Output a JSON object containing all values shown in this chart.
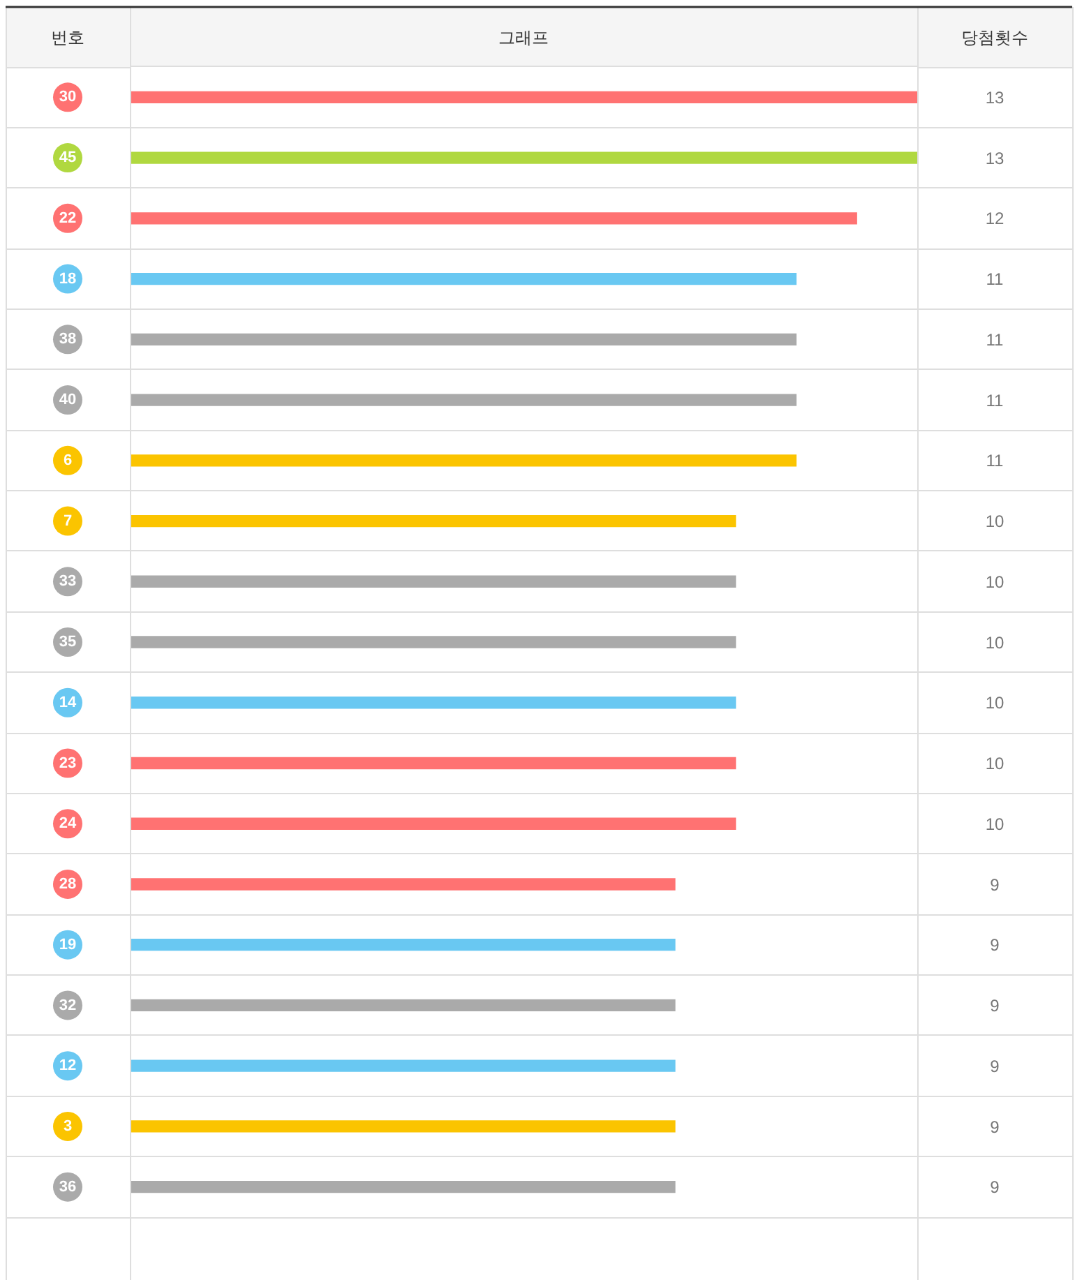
{
  "chart_data": {
    "type": "bar",
    "orientation": "horizontal",
    "title": "그래프",
    "ylabel": "번호",
    "xlabel": "당첨횟수",
    "categories": [
      "30",
      "45",
      "22",
      "18",
      "38",
      "40",
      "6",
      "7",
      "33",
      "35",
      "14",
      "23",
      "24",
      "28",
      "19",
      "32",
      "12",
      "3",
      "36"
    ],
    "values": [
      13,
      13,
      12,
      11,
      11,
      11,
      11,
      10,
      10,
      10,
      10,
      10,
      10,
      9,
      9,
      9,
      9,
      9,
      9
    ],
    "colors": [
      "#ff7272",
      "#b0d840",
      "#ff7272",
      "#69c8f2",
      "#aaaaaa",
      "#aaaaaa",
      "#fbc400",
      "#fbc400",
      "#aaaaaa",
      "#aaaaaa",
      "#69c8f2",
      "#ff7272",
      "#ff7272",
      "#ff7272",
      "#69c8f2",
      "#aaaaaa",
      "#69c8f2",
      "#fbc400",
      "#aaaaaa"
    ],
    "xlim": [
      0,
      13
    ],
    "data_labels": true,
    "grid": "y",
    "tick_labels": "y"
  }
}
